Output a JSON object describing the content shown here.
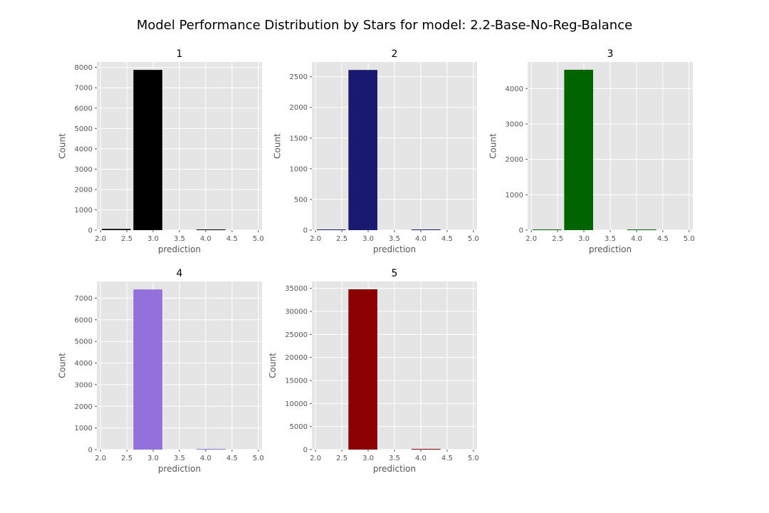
{
  "figure": {
    "suptitle": "Model Performance Distribution by Stars for model: 2.2-Base-No-Reg-Balance"
  },
  "chart_data": [
    {
      "type": "bar",
      "title": "1",
      "xlabel": "prediction",
      "ylabel": "Count",
      "color": "#000000",
      "bar_width": 0.55,
      "x": [
        2.3,
        2.9,
        4.1
      ],
      "values": [
        60,
        7880,
        25
      ],
      "xlim": [
        1.93,
        5.07
      ],
      "ylim": [
        0,
        8270
      ],
      "xticks": [
        2.0,
        2.5,
        3.0,
        3.5,
        4.0,
        4.5,
        5.0
      ],
      "xtick_labels": [
        "2.0",
        "2.5",
        "3.0",
        "3.5",
        "4.0",
        "4.5",
        "5.0"
      ],
      "yticks": [
        0,
        1000,
        2000,
        3000,
        4000,
        5000,
        6000,
        7000,
        8000
      ],
      "ytick_labels": [
        "0",
        "1000",
        "2000",
        "3000",
        "4000",
        "5000",
        "6000",
        "7000",
        "8000"
      ],
      "grid": true
    },
    {
      "type": "bar",
      "title": "2",
      "xlabel": "prediction",
      "ylabel": "Count",
      "color": "#191970",
      "bar_width": 0.55,
      "x": [
        2.3,
        2.9,
        4.1
      ],
      "values": [
        8,
        2610,
        8
      ],
      "xlim": [
        1.93,
        5.07
      ],
      "ylim": [
        0,
        2740
      ],
      "xticks": [
        2.0,
        2.5,
        3.0,
        3.5,
        4.0,
        4.5,
        5.0
      ],
      "xtick_labels": [
        "2.0",
        "2.5",
        "3.0",
        "3.5",
        "4.0",
        "4.5",
        "5.0"
      ],
      "yticks": [
        0,
        500,
        1000,
        1500,
        2000,
        2500
      ],
      "ytick_labels": [
        "0",
        "500",
        "1000",
        "1500",
        "2000",
        "2500"
      ],
      "grid": true
    },
    {
      "type": "bar",
      "title": "3",
      "xlabel": "prediction",
      "ylabel": "Count",
      "color": "#006400",
      "bar_width": 0.55,
      "x": [
        2.3,
        2.9,
        4.1
      ],
      "values": [
        12,
        4530,
        10
      ],
      "xlim": [
        1.93,
        5.07
      ],
      "ylim": [
        0,
        4750
      ],
      "xticks": [
        2.0,
        2.5,
        3.0,
        3.5,
        4.0,
        4.5,
        5.0
      ],
      "xtick_labels": [
        "2.0",
        "2.5",
        "3.0",
        "3.5",
        "4.0",
        "4.5",
        "5.0"
      ],
      "yticks": [
        0,
        1000,
        2000,
        3000,
        4000
      ],
      "ytick_labels": [
        "0",
        "1000",
        "2000",
        "3000",
        "4000"
      ],
      "grid": true
    },
    {
      "type": "bar",
      "title": "4",
      "xlabel": "prediction",
      "ylabel": "Count",
      "color": "#9370DB",
      "bar_width": 0.55,
      "x": [
        2.9,
        4.1
      ],
      "values": [
        7400,
        25
      ],
      "xlim": [
        1.93,
        5.07
      ],
      "ylim": [
        0,
        7770
      ],
      "xticks": [
        2.0,
        2.5,
        3.0,
        3.5,
        4.0,
        4.5,
        5.0
      ],
      "xtick_labels": [
        "2.0",
        "2.5",
        "3.0",
        "3.5",
        "4.0",
        "4.5",
        "5.0"
      ],
      "yticks": [
        0,
        1000,
        2000,
        3000,
        4000,
        5000,
        6000,
        7000
      ],
      "ytick_labels": [
        "0",
        "1000",
        "2000",
        "3000",
        "4000",
        "5000",
        "6000",
        "7000"
      ],
      "grid": true
    },
    {
      "type": "bar",
      "title": "5",
      "xlabel": "prediction",
      "ylabel": "Count",
      "color": "#8B0000",
      "bar_width": 0.55,
      "x": [
        2.9,
        4.1
      ],
      "values": [
        34800,
        150
      ],
      "xlim": [
        1.93,
        5.07
      ],
      "ylim": [
        0,
        36500
      ],
      "xticks": [
        2.0,
        2.5,
        3.0,
        3.5,
        4.0,
        4.5,
        5.0
      ],
      "xtick_labels": [
        "2.0",
        "2.5",
        "3.0",
        "3.5",
        "4.0",
        "4.5",
        "5.0"
      ],
      "yticks": [
        0,
        5000,
        10000,
        15000,
        20000,
        25000,
        30000,
        35000
      ],
      "ytick_labels": [
        "0",
        "5000",
        "10000",
        "15000",
        "20000",
        "25000",
        "30000",
        "35000"
      ],
      "grid": true
    }
  ]
}
